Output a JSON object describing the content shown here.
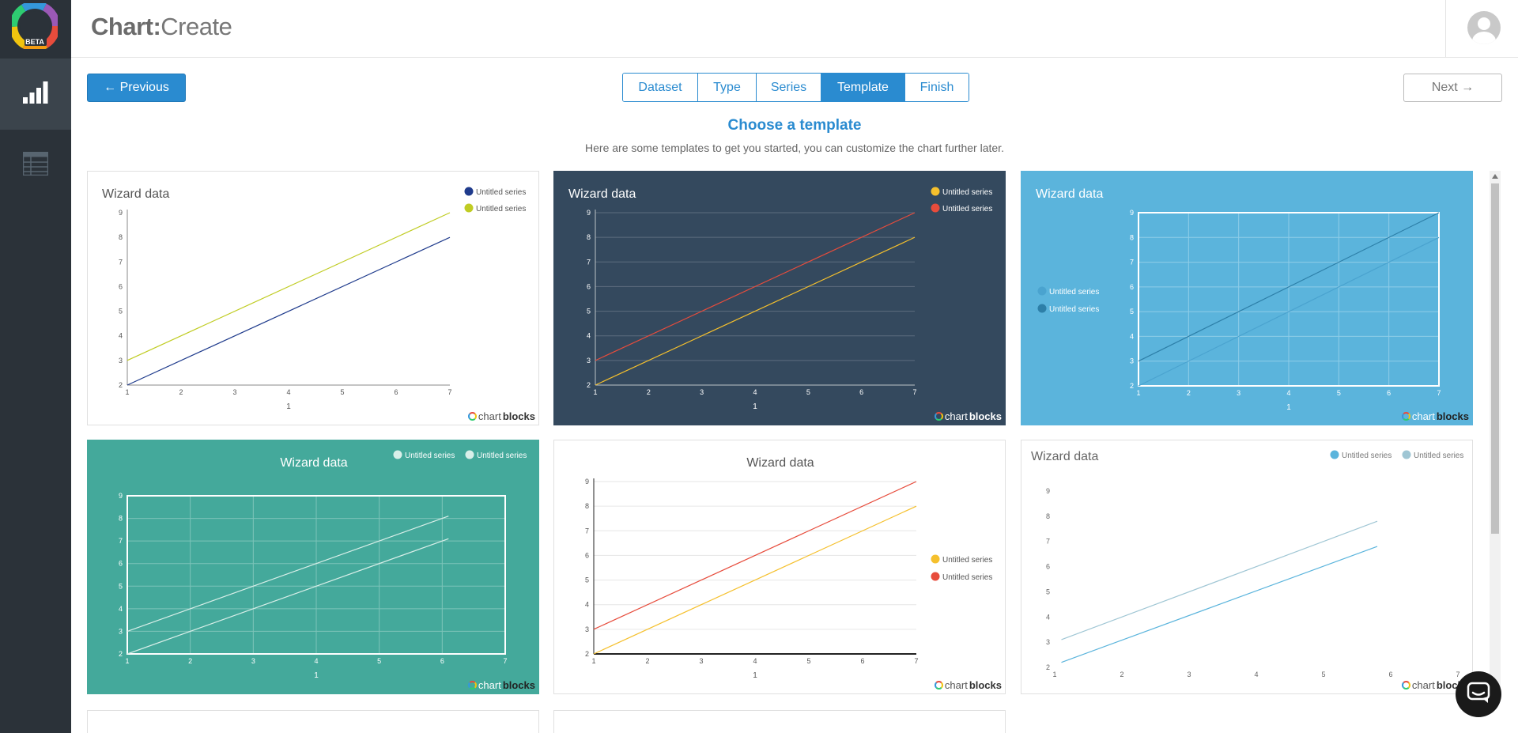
{
  "app": {
    "brand_bold": "Chart:",
    "brand_light": "Create",
    "logo_badge": "BETA"
  },
  "sidebar": {
    "items": [
      {
        "icon": "bar-chart-icon",
        "active": true
      },
      {
        "icon": "table-icon",
        "active": false
      }
    ]
  },
  "nav": {
    "previous_label": "← Previous",
    "next_label": "Next →",
    "steps": [
      {
        "label": "Dataset",
        "active": false
      },
      {
        "label": "Type",
        "active": false
      },
      {
        "label": "Series",
        "active": false
      },
      {
        "label": "Template",
        "active": true
      },
      {
        "label": "Finish",
        "active": false
      }
    ]
  },
  "section": {
    "title": "Choose a template",
    "subtitle": "Here are some templates to get you started, you can customize the chart further later."
  },
  "brand_mark": {
    "part1": "chart",
    "part2": "blocks"
  },
  "templates": [
    {
      "style": "light",
      "chart_data": {
        "type": "line",
        "title": "Wizard data",
        "xlabel": "1",
        "x": [
          1,
          7
        ],
        "xlim": [
          1,
          7
        ],
        "ylim": [
          2,
          9
        ],
        "yticks": [
          "2",
          "3",
          "4",
          "5",
          "6",
          "7",
          "8",
          "9"
        ],
        "xticks": [
          "1",
          "2",
          "3",
          "4",
          "5",
          "6",
          "7"
        ],
        "legend": "top-right",
        "series": [
          {
            "name": "Untitled series",
            "color": "#1f3b8c",
            "values": [
              2,
              8
            ]
          },
          {
            "name": "Untitled series",
            "color": "#c0cc23",
            "values": [
              3,
              9
            ]
          }
        ]
      }
    },
    {
      "style": "dark",
      "chart_data": {
        "type": "line",
        "title": "Wizard data",
        "xlabel": "1",
        "x": [
          1,
          7
        ],
        "ylim": [
          2,
          9
        ],
        "yticks": [
          "2",
          "3",
          "4",
          "5",
          "6",
          "7",
          "8",
          "9"
        ],
        "xticks": [
          "1",
          "2",
          "3",
          "4",
          "5",
          "6",
          "7"
        ],
        "legend": "top-right",
        "series": [
          {
            "name": "Untitled series",
            "color": "#f5c02d",
            "values": [
              2,
              8
            ]
          },
          {
            "name": "Untitled series",
            "color": "#e74c3c",
            "values": [
              3,
              9
            ]
          }
        ]
      }
    },
    {
      "style": "blue",
      "chart_data": {
        "type": "line",
        "title": "Wizard data",
        "xlabel": "1",
        "x": [
          1,
          7
        ],
        "ylim": [
          2,
          9
        ],
        "yticks": [
          "2",
          "3",
          "4",
          "5",
          "6",
          "7",
          "8",
          "9"
        ],
        "xticks": [
          "1",
          "2",
          "3",
          "4",
          "5",
          "6",
          "7"
        ],
        "legend": "left",
        "series": [
          {
            "name": "Untitled series",
            "color": "#4aa3cf",
            "values": [
              2,
              8
            ]
          },
          {
            "name": "Untitled series",
            "color": "#2d7fa8",
            "values": [
              3,
              9
            ]
          }
        ]
      }
    },
    {
      "style": "teal",
      "chart_data": {
        "type": "line",
        "title": "Wizard data",
        "xlabel": "1",
        "x": [
          1,
          6.1
        ],
        "ylim": [
          2,
          9
        ],
        "yticks": [
          "2",
          "3",
          "4",
          "5",
          "6",
          "7",
          "8",
          "9"
        ],
        "xticks": [
          "1",
          "2",
          "3",
          "4",
          "5",
          "6",
          "7"
        ],
        "legend": "top-right",
        "series": [
          {
            "name": "Untitled series",
            "color": "#d9efe9",
            "values": [
              2,
              7.1
            ]
          },
          {
            "name": "Untitled series",
            "color": "#d9efe9",
            "values": [
              3,
              8.1
            ]
          }
        ]
      }
    },
    {
      "style": "white-center",
      "chart_data": {
        "type": "line",
        "title": "Wizard data",
        "xlabel": "1",
        "x": [
          1,
          7
        ],
        "ylim": [
          2,
          9
        ],
        "yticks": [
          "2",
          "3",
          "4",
          "5",
          "6",
          "7",
          "8",
          "9"
        ],
        "xticks": [
          "1",
          "2",
          "3",
          "4",
          "5",
          "6",
          "7"
        ],
        "legend": "right",
        "series": [
          {
            "name": "Untitled series",
            "color": "#f5c02d",
            "values": [
              2,
              8
            ]
          },
          {
            "name": "Untitled series",
            "color": "#e74c3c",
            "values": [
              3,
              9
            ]
          }
        ]
      }
    },
    {
      "style": "minimal",
      "chart_data": {
        "type": "line",
        "title": "Wizard data",
        "xlabel": "",
        "x": [
          1.1,
          5.8
        ],
        "ylim": [
          2,
          9
        ],
        "yticks": [
          "2",
          "3",
          "4",
          "5",
          "6",
          "7",
          "8",
          "9"
        ],
        "xticks": [
          "1",
          "2",
          "3",
          "4",
          "5",
          "6",
          "7"
        ],
        "legend": "top-right",
        "series": [
          {
            "name": "Untitled series",
            "color": "#5ab4dc",
            "values": [
              2.2,
              6.8
            ]
          },
          {
            "name": "Untitled series",
            "color": "#9fc6d4",
            "values": [
              3.1,
              7.8
            ]
          }
        ]
      }
    }
  ]
}
